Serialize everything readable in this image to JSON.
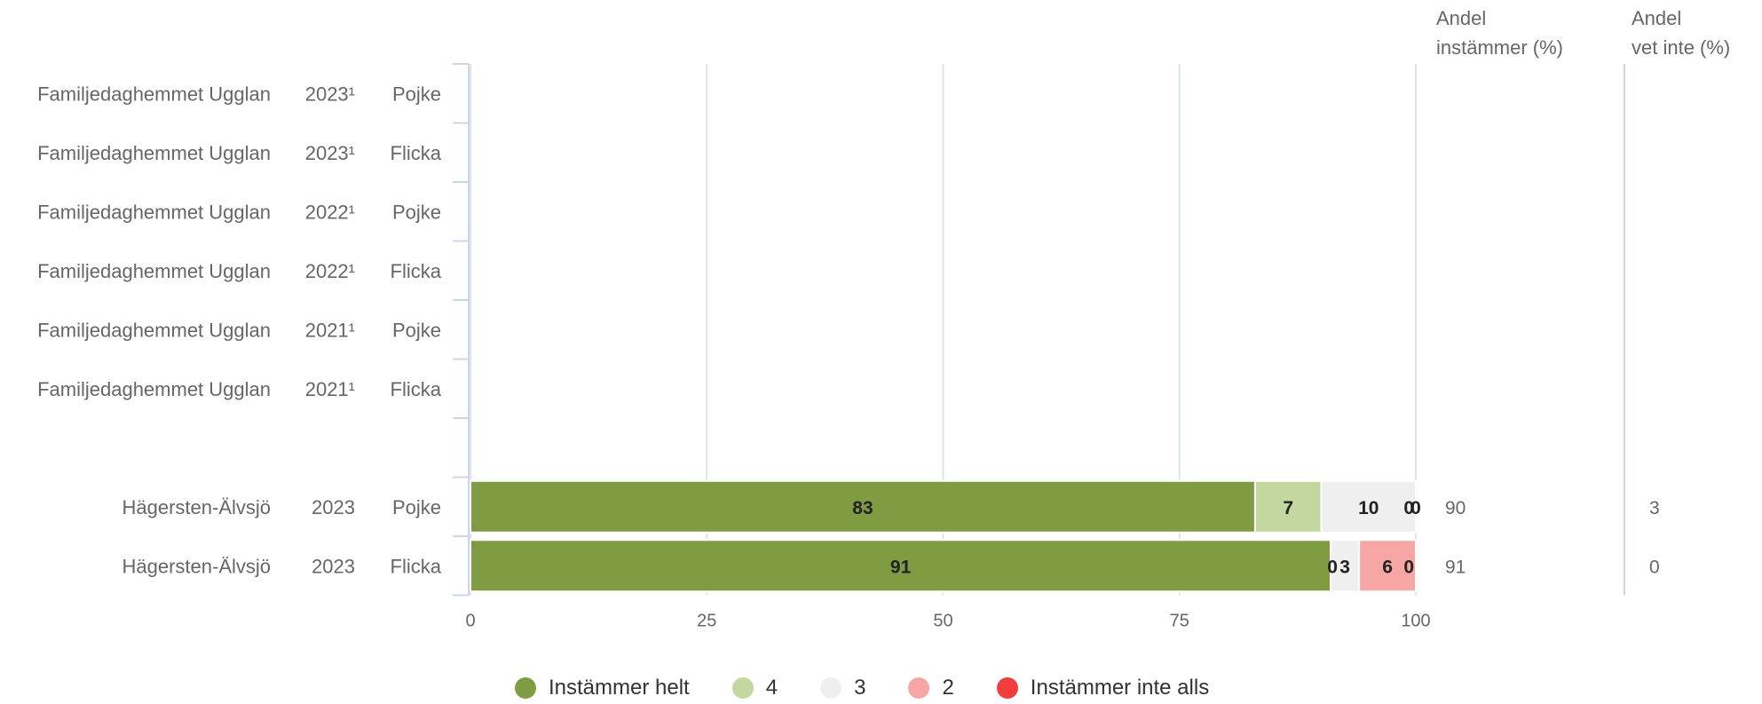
{
  "chart_data": {
    "type": "bar",
    "stacked": true,
    "orientation": "horizontal",
    "xlim": [
      0,
      100
    ],
    "x_ticks": [
      "0",
      "25",
      "50",
      "75",
      "100"
    ],
    "grid": true,
    "legend_position": "bottom",
    "column_headers": {
      "agree_line1": "Andel",
      "agree_line2": "instämmer (%)",
      "dontknow_line1": "Andel",
      "dontknow_line2": "vet inte (%)"
    },
    "rows": [
      {
        "unit": "Familjedaghemmet Ugglan",
        "year": "2023¹",
        "gender": "Pojke",
        "values": null,
        "agree": "",
        "dont_know": ""
      },
      {
        "unit": "Familjedaghemmet Ugglan",
        "year": "2023¹",
        "gender": "Flicka",
        "values": null,
        "agree": "",
        "dont_know": ""
      },
      {
        "unit": "Familjedaghemmet Ugglan",
        "year": "2022¹",
        "gender": "Pojke",
        "values": null,
        "agree": "",
        "dont_know": ""
      },
      {
        "unit": "Familjedaghemmet Ugglan",
        "year": "2022¹",
        "gender": "Flicka",
        "values": null,
        "agree": "",
        "dont_know": ""
      },
      {
        "unit": "Familjedaghemmet Ugglan",
        "year": "2021¹",
        "gender": "Pojke",
        "values": null,
        "agree": "",
        "dont_know": ""
      },
      {
        "unit": "Familjedaghemmet Ugglan",
        "year": "2021¹",
        "gender": "Flicka",
        "values": null,
        "agree": "",
        "dont_know": ""
      },
      {
        "unit": "",
        "year": "",
        "gender": "",
        "values": null,
        "agree": "",
        "dont_know": ""
      },
      {
        "unit": "Hägersten-Älvsjö",
        "year": "2023",
        "gender": "Pojke",
        "values": [
          83,
          7,
          10,
          0,
          0
        ],
        "agree": "90",
        "dont_know": "3"
      },
      {
        "unit": "Hägersten-Älvsjö",
        "year": "2023",
        "gender": "Flicka",
        "values": [
          91,
          0,
          3,
          6,
          0
        ],
        "agree": "91",
        "dont_know": "0"
      }
    ],
    "series": [
      {
        "name": "Instämmer helt",
        "color": "#7f9c43"
      },
      {
        "name": "4",
        "color": "#c2d89f"
      },
      {
        "name": "3",
        "color": "#efefef"
      },
      {
        "name": "2",
        "color": "#f7a6a6"
      },
      {
        "name": "Instämmer inte alls",
        "color": "#f23d3d"
      }
    ]
  }
}
